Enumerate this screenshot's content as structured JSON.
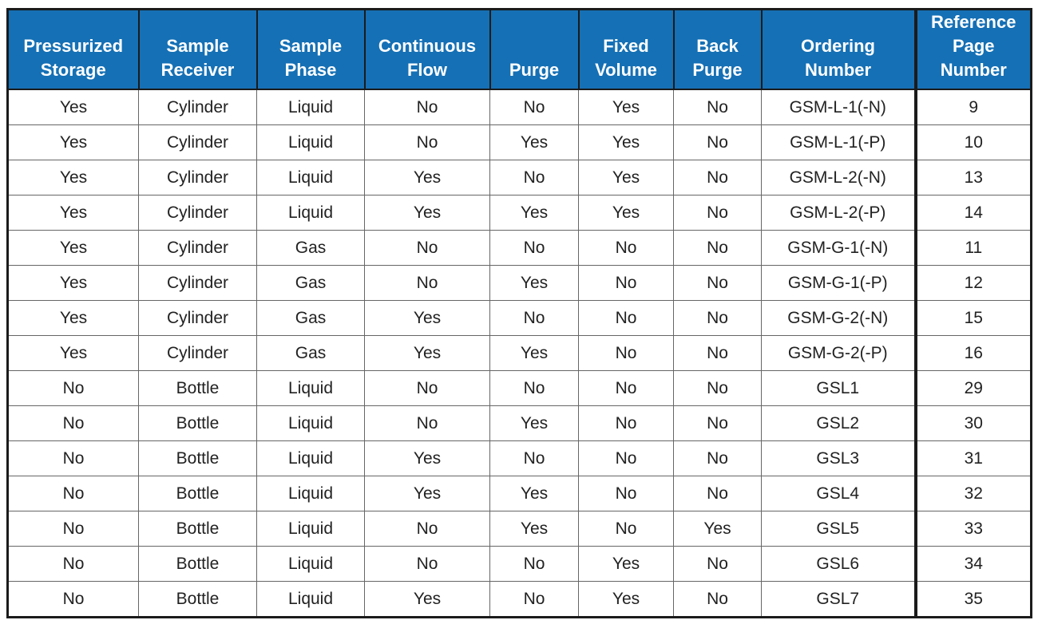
{
  "table": {
    "header": [
      "Pressurized Storage",
      "Sample Receiver",
      "Sample Phase",
      "Continuous Flow",
      "Purge",
      "Fixed Volume",
      "Back Purge",
      "Ordering Number",
      "Reference Page Number"
    ],
    "rows": [
      [
        "Yes",
        "Cylinder",
        "Liquid",
        "No",
        "No",
        "Yes",
        "No",
        "GSM-L-1(-N)",
        9
      ],
      [
        "Yes",
        "Cylinder",
        "Liquid",
        "No",
        "Yes",
        "Yes",
        "No",
        "GSM-L-1(-P)",
        10
      ],
      [
        "Yes",
        "Cylinder",
        "Liquid",
        "Yes",
        "No",
        "Yes",
        "No",
        "GSM-L-2(-N)",
        13
      ],
      [
        "Yes",
        "Cylinder",
        "Liquid",
        "Yes",
        "Yes",
        "Yes",
        "No",
        "GSM-L-2(-P)",
        14
      ],
      [
        "Yes",
        "Cylinder",
        "Gas",
        "No",
        "No",
        "No",
        "No",
        "GSM-G-1(-N)",
        11
      ],
      [
        "Yes",
        "Cylinder",
        "Gas",
        "No",
        "Yes",
        "No",
        "No",
        "GSM-G-1(-P)",
        12
      ],
      [
        "Yes",
        "Cylinder",
        "Gas",
        "Yes",
        "No",
        "No",
        "No",
        "GSM-G-2(-N)",
        15
      ],
      [
        "Yes",
        "Cylinder",
        "Gas",
        "Yes",
        "Yes",
        "No",
        "No",
        "GSM-G-2(-P)",
        16
      ],
      [
        "No",
        "Bottle",
        "Liquid",
        "No",
        "No",
        "No",
        "No",
        "GSL1",
        29
      ],
      [
        "No",
        "Bottle",
        "Liquid",
        "No",
        "Yes",
        "No",
        "No",
        "GSL2",
        30
      ],
      [
        "No",
        "Bottle",
        "Liquid",
        "Yes",
        "No",
        "No",
        "No",
        "GSL3",
        31
      ],
      [
        "No",
        "Bottle",
        "Liquid",
        "Yes",
        "Yes",
        "No",
        "No",
        "GSL4",
        32
      ],
      [
        "No",
        "Bottle",
        "Liquid",
        "No",
        "Yes",
        "No",
        "Yes",
        "GSL5",
        33
      ],
      [
        "No",
        "Bottle",
        "Liquid",
        "No",
        "No",
        "Yes",
        "No",
        "GSL6",
        34
      ],
      [
        "No",
        "Bottle",
        "Liquid",
        "Yes",
        "No",
        "Yes",
        "No",
        "GSL7",
        35
      ]
    ]
  }
}
